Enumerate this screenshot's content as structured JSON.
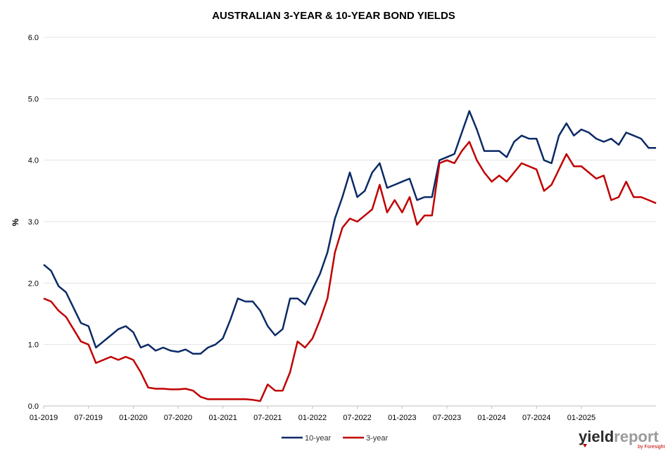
{
  "chart_data": {
    "type": "line",
    "title": "AUSTRALIAN 3-YEAR & 10-YEAR BOND YIELDS",
    "ylabel": "%",
    "xlabel": "",
    "ylim": [
      0,
      6
    ],
    "yticks": [
      "0.0",
      "1.0",
      "2.0",
      "3.0",
      "4.0",
      "5.0",
      "6.0"
    ],
    "xlim": [
      "2019-01",
      "2025-11"
    ],
    "xticks": [
      "01-2019",
      "07-2019",
      "01-2020",
      "07-2020",
      "01-2021",
      "07-2021",
      "01-2022",
      "07-2022",
      "01-2023",
      "07-2023",
      "01-2024",
      "07-2024",
      "01-2025"
    ],
    "grid": "horizontal",
    "legend_position": "bottom",
    "series": [
      {
        "name": "10-year",
        "color": "#0b2a66",
        "x": [
          "2019-01",
          "2019-02",
          "2019-03",
          "2019-04",
          "2019-05",
          "2019-06",
          "2019-07",
          "2019-08",
          "2019-09",
          "2019-10",
          "2019-11",
          "2019-12",
          "2020-01",
          "2020-02",
          "2020-03",
          "2020-04",
          "2020-05",
          "2020-06",
          "2020-07",
          "2020-08",
          "2020-09",
          "2020-10",
          "2020-11",
          "2020-12",
          "2021-01",
          "2021-02",
          "2021-03",
          "2021-04",
          "2021-05",
          "2021-06",
          "2021-07",
          "2021-08",
          "2021-09",
          "2021-10",
          "2021-11",
          "2021-12",
          "2022-01",
          "2022-02",
          "2022-03",
          "2022-04",
          "2022-05",
          "2022-06",
          "2022-07",
          "2022-08",
          "2022-09",
          "2022-10",
          "2022-11",
          "2022-12",
          "2023-01",
          "2023-02",
          "2023-03",
          "2023-04",
          "2023-05",
          "2023-06",
          "2023-07",
          "2023-08",
          "2023-09",
          "2023-10",
          "2023-11",
          "2023-12",
          "2024-01",
          "2024-02",
          "2024-03",
          "2024-04",
          "2024-05",
          "2024-06",
          "2024-07",
          "2024-08",
          "2024-09",
          "2024-10",
          "2024-11",
          "2024-12",
          "2025-01",
          "2025-02",
          "2025-03",
          "2025-04",
          "2025-05",
          "2025-06",
          "2025-07",
          "2025-08",
          "2025-09",
          "2025-10",
          "2025-11"
        ],
        "values": [
          2.3,
          2.2,
          1.95,
          1.85,
          1.6,
          1.35,
          1.3,
          0.95,
          1.05,
          1.15,
          1.25,
          1.3,
          1.2,
          0.95,
          1.0,
          0.9,
          0.95,
          0.9,
          0.88,
          0.92,
          0.85,
          0.85,
          0.95,
          1.0,
          1.1,
          1.4,
          1.75,
          1.7,
          1.7,
          1.55,
          1.3,
          1.15,
          1.25,
          1.75,
          1.75,
          1.65,
          1.9,
          2.15,
          2.5,
          3.05,
          3.4,
          3.8,
          3.4,
          3.5,
          3.8,
          3.95,
          3.55,
          3.6,
          3.65,
          3.7,
          3.35,
          3.4,
          3.4,
          4.0,
          4.05,
          4.1,
          4.45,
          4.8,
          4.5,
          4.15,
          4.15,
          4.15,
          4.05,
          4.3,
          4.4,
          4.35,
          4.35,
          4.0,
          3.95,
          4.4,
          4.6,
          4.4,
          4.5,
          4.45,
          4.35,
          4.3,
          4.35,
          4.25,
          4.45,
          4.4,
          4.35,
          4.2,
          4.2
        ]
      },
      {
        "name": "3-year",
        "color": "#c00000",
        "x": [
          "2019-01",
          "2019-02",
          "2019-03",
          "2019-04",
          "2019-05",
          "2019-06",
          "2019-07",
          "2019-08",
          "2019-09",
          "2019-10",
          "2019-11",
          "2019-12",
          "2020-01",
          "2020-02",
          "2020-03",
          "2020-04",
          "2020-05",
          "2020-06",
          "2020-07",
          "2020-08",
          "2020-09",
          "2020-10",
          "2020-11",
          "2020-12",
          "2021-01",
          "2021-02",
          "2021-03",
          "2021-04",
          "2021-05",
          "2021-06",
          "2021-07",
          "2021-08",
          "2021-09",
          "2021-10",
          "2021-11",
          "2021-12",
          "2022-01",
          "2022-02",
          "2022-03",
          "2022-04",
          "2022-05",
          "2022-06",
          "2022-07",
          "2022-08",
          "2022-09",
          "2022-10",
          "2022-11",
          "2022-12",
          "2023-01",
          "2023-02",
          "2023-03",
          "2023-04",
          "2023-05",
          "2023-06",
          "2023-07",
          "2023-08",
          "2023-09",
          "2023-10",
          "2023-11",
          "2023-12",
          "2024-01",
          "2024-02",
          "2024-03",
          "2024-04",
          "2024-05",
          "2024-06",
          "2024-07",
          "2024-08",
          "2024-09",
          "2024-10",
          "2024-11",
          "2024-12",
          "2025-01",
          "2025-02",
          "2025-03",
          "2025-04",
          "2025-05",
          "2025-06",
          "2025-07",
          "2025-08",
          "2025-09",
          "2025-10",
          "2025-11"
        ],
        "values": [
          1.75,
          1.7,
          1.55,
          1.45,
          1.25,
          1.05,
          1.0,
          0.7,
          0.75,
          0.8,
          0.75,
          0.8,
          0.75,
          0.55,
          0.3,
          0.28,
          0.28,
          0.27,
          0.27,
          0.28,
          0.25,
          0.15,
          0.11,
          0.11,
          0.11,
          0.11,
          0.11,
          0.11,
          0.1,
          0.08,
          0.35,
          0.25,
          0.25,
          0.55,
          1.05,
          0.95,
          1.1,
          1.4,
          1.75,
          2.5,
          2.9,
          3.05,
          3.0,
          3.1,
          3.2,
          3.6,
          3.15,
          3.35,
          3.15,
          3.4,
          2.95,
          3.1,
          3.1,
          3.95,
          4.0,
          3.95,
          4.15,
          4.3,
          4.0,
          3.8,
          3.65,
          3.75,
          3.65,
          3.8,
          3.95,
          3.9,
          3.85,
          3.5,
          3.6,
          3.85,
          4.1,
          3.9,
          3.9,
          3.8,
          3.7,
          3.75,
          3.35,
          3.4,
          3.65,
          3.4,
          3.4,
          3.35,
          3.3
        ]
      }
    ]
  },
  "logo": {
    "brand_part1": "yield",
    "brand_part2": "report",
    "byline": "by Foresight",
    "color_dark": "#2b2b2b",
    "color_grey": "#9b9b9b",
    "color_red": "#c00000"
  }
}
